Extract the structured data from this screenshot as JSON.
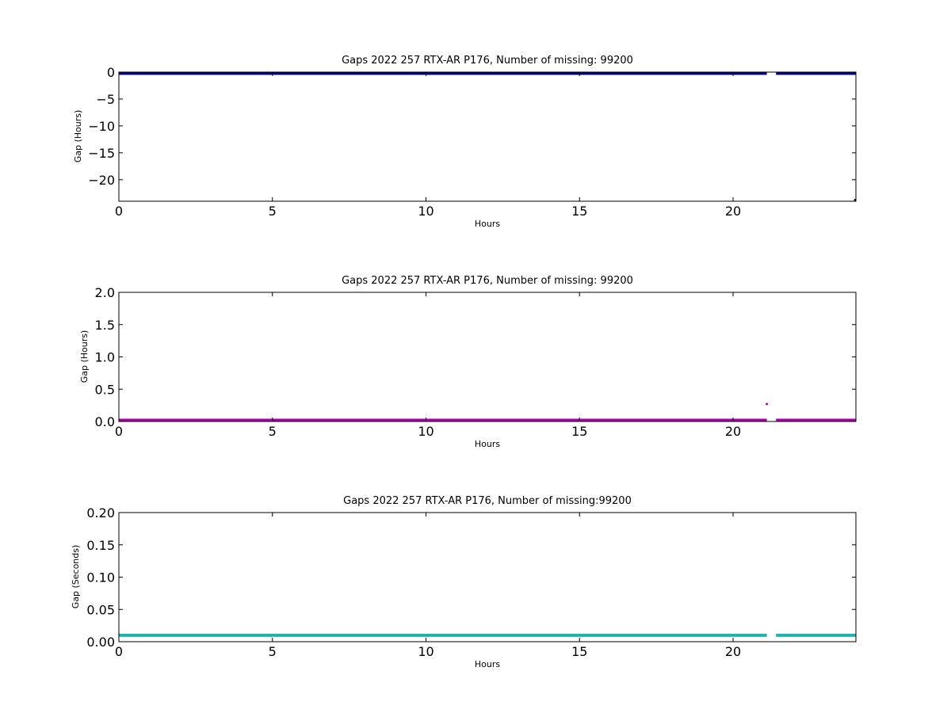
{
  "chart_data": [
    {
      "type": "scatter",
      "title": "Gaps 2022 257 RTX-AR  P176, Number of missing: 99200",
      "xlabel": "Hours",
      "ylabel": "Gap (Hours)",
      "xlim": [
        0,
        24
      ],
      "ylim": [
        -24,
        0
      ],
      "x_ticks": [
        0,
        5,
        10,
        15,
        20
      ],
      "y_ticks": [
        0,
        -5,
        -10,
        -15,
        -20
      ],
      "y_tick_labels": [
        "0",
        "−5",
        "−10",
        "−15",
        "−20"
      ],
      "grid": false,
      "series": [
        {
          "color": "#000080",
          "segments": [
            [
              0,
              21.1,
              0
            ],
            [
              21.4,
              24,
              0
            ]
          ],
          "points": [
            [
              24,
              -24
            ]
          ]
        }
      ]
    },
    {
      "type": "scatter",
      "title": "Gaps 2022 257 RTX-AR  P176, Number of missing: 99200",
      "xlabel": "Hours",
      "ylabel": "Gap (Hours)",
      "xlim": [
        0,
        24
      ],
      "ylim": [
        0,
        2
      ],
      "x_ticks": [
        0,
        5,
        10,
        15,
        20
      ],
      "y_ticks": [
        0.0,
        0.5,
        1.0,
        1.5,
        2.0
      ],
      "y_tick_labels": [
        "0.0",
        "0.5",
        "1.0",
        "1.5",
        "2.0"
      ],
      "grid": false,
      "series": [
        {
          "color": "#aa00aa",
          "segments": [
            [
              0,
              21.1,
              0.003
            ],
            [
              21.4,
              24,
              0.003
            ]
          ],
          "points": [
            [
              21.1,
              0.27
            ]
          ]
        }
      ]
    },
    {
      "type": "scatter",
      "title": "Gaps 2022 257 RTX-AR  P176, Number of missing:99200",
      "xlabel": "Hours",
      "ylabel": "Gap (Seconds)",
      "xlim": [
        0,
        24
      ],
      "ylim": [
        0,
        0.2
      ],
      "x_ticks": [
        0,
        5,
        10,
        15,
        20
      ],
      "y_ticks": [
        0.0,
        0.05,
        0.1,
        0.15,
        0.2
      ],
      "y_tick_labels": [
        "0.00",
        "0.05",
        "0.10",
        "0.15",
        "0.20"
      ],
      "grid": false,
      "series": [
        {
          "color": "#20b2aa",
          "segments": [
            [
              0,
              21.1,
              0.01
            ],
            [
              21.4,
              24,
              0.01
            ]
          ],
          "points": []
        }
      ]
    }
  ]
}
